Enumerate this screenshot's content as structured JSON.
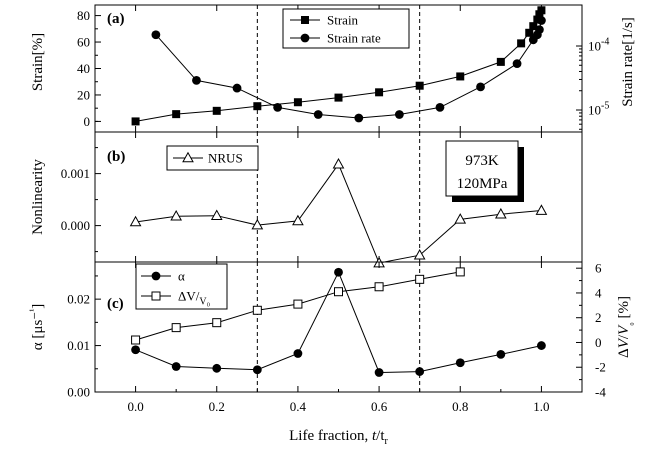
{
  "chart_data": [
    {
      "type": "line",
      "panel_label": "(a)",
      "ylabel": "Strain[%]",
      "ylabel_right": "Strain rate[1/s]",
      "ylim": [
        -8,
        88
      ],
      "yticks": [
        "0",
        "20",
        "40",
        "60",
        "80"
      ],
      "right_ticks": [
        "10-5",
        "10-4"
      ],
      "right_scale": "log",
      "series": [
        {
          "name": "Strain",
          "axis": "left",
          "marker": "filled-square",
          "x": [
            0.0,
            0.1,
            0.2,
            0.3,
            0.4,
            0.5,
            0.6,
            0.7,
            0.8,
            0.9,
            0.95,
            0.97,
            0.98,
            0.99,
            0.995,
            1.0
          ],
          "y": [
            0,
            5.5,
            8,
            11.5,
            14.5,
            18,
            22,
            27,
            34,
            45,
            59,
            67,
            72,
            77,
            81,
            84
          ]
        },
        {
          "name": "Strain rate",
          "axis": "right",
          "marker": "filled-circle",
          "x": [
            0.05,
            0.15,
            0.25,
            0.35,
            0.45,
            0.55,
            0.65,
            0.75,
            0.85,
            0.94,
            0.98,
            0.99,
            0.995,
            1.0
          ],
          "y": [
            0.00015,
            2.9e-05,
            2.2e-05,
            1.1e-05,
            8.5e-06,
            7.5e-06,
            8.5e-06,
            1.1e-05,
            2.3e-05,
            5.3e-05,
            0.000125,
            0.00015,
            0.00018,
            0.00025
          ]
        }
      ]
    },
    {
      "type": "line",
      "panel_label": "(b)",
      "ylabel": "Nonlinearity",
      "ylim": [
        -0.0007,
        0.0018
      ],
      "yticks": [
        "0.000",
        "0.001"
      ],
      "annotation": [
        "973K",
        "120MPa"
      ],
      "series": [
        {
          "name": "NRUS",
          "marker": "open-triangle",
          "x": [
            0.0,
            0.1,
            0.2,
            0.3,
            0.4,
            0.5,
            0.6,
            0.7,
            0.8,
            0.9,
            1.0
          ],
          "y": [
            7e-05,
            0.00018,
            0.00019,
            1e-05,
            9e-05,
            0.00118,
            -0.00072,
            -0.00057,
            0.00012,
            0.00022,
            0.00029
          ]
        }
      ]
    },
    {
      "type": "line",
      "panel_label": "(c)",
      "ylabel": "α [μs⁻¹]",
      "ylabel_right": "ΔV/V₀ [%]",
      "ylim": [
        0.0,
        0.028
      ],
      "yticks": [
        "0.00",
        "0.01",
        "0.02"
      ],
      "right_ylim": [
        -4,
        6.5
      ],
      "right_ticks": [
        "-4",
        "-2",
        "0",
        "2",
        "4",
        "6"
      ],
      "xlabel": "Life fraction, t/tr",
      "xlim": [
        -0.1,
        1.1
      ],
      "xticks": [
        "0.0",
        "0.2",
        "0.4",
        "0.6",
        "0.8",
        "1.0"
      ],
      "vlines": [
        0.3,
        0.7
      ],
      "series": [
        {
          "name": "α",
          "axis": "left",
          "marker": "filled-circle",
          "x": [
            0.0,
            0.1,
            0.2,
            0.3,
            0.4,
            0.5,
            0.6,
            0.7,
            0.8,
            0.9,
            1.0
          ],
          "y": [
            0.0091,
            0.0055,
            0.0051,
            0.0048,
            0.0083,
            0.0258,
            0.0042,
            0.0044,
            0.0063,
            0.0081,
            0.01
          ]
        },
        {
          "name": "ΔV/V₀",
          "axis": "right",
          "marker": "open-square",
          "x": [
            0.0,
            0.1,
            0.2,
            0.3,
            0.4,
            0.5,
            0.6,
            0.7,
            0.8
          ],
          "y": [
            0.2,
            1.2,
            1.6,
            2.6,
            3.1,
            4.1,
            4.5,
            5.1,
            5.7
          ]
        }
      ]
    }
  ]
}
